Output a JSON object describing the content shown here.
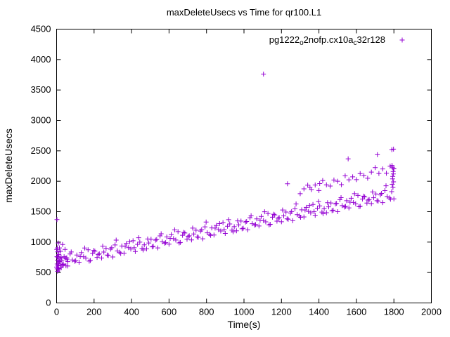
{
  "window": {
    "background": "#ffffff"
  },
  "chart_data": {
    "type": "scatter",
    "title": "maxDeleteUsecs vs Time for qr100.L1",
    "xlabel": "Time(s)",
    "ylabel": "maxDeleteUsecs",
    "xlim": [
      0,
      2000
    ],
    "ylim": [
      0,
      4500
    ],
    "xticks": [
      0,
      200,
      400,
      600,
      800,
      1000,
      1200,
      1400,
      1600,
      1800,
      2000
    ],
    "yticks": [
      0,
      500,
      1000,
      1500,
      2000,
      2500,
      3000,
      3500,
      4000,
      4500
    ],
    "grid": false,
    "legend_position": "top-right-inside",
    "legend_label": "pg1222_o2nofp.cx10a_c32r128",
    "legend_segments": [
      {
        "text": "pg1222",
        "sub": false
      },
      {
        "text": "o",
        "sub": true
      },
      {
        "text": "2nofp.cx10a",
        "sub": false
      },
      {
        "text": "c",
        "sub": true
      },
      {
        "text": "32r128",
        "sub": false
      }
    ],
    "marker": "plus",
    "marker_color": "#9400d3",
    "series": [
      {
        "name": "pg1222_o2nofp.cx10a_c32r128",
        "color": "#9400d3",
        "points": [
          [
            0,
            590
          ],
          [
            12,
            687
          ],
          [
            24,
            750
          ],
          [
            36,
            632
          ],
          [
            48,
            735
          ],
          [
            60,
            607
          ],
          [
            72,
            805
          ],
          [
            84,
            707
          ],
          [
            96,
            685
          ],
          [
            108,
            787
          ],
          [
            120,
            669
          ],
          [
            132,
            827
          ],
          [
            144,
            759
          ],
          [
            156,
            737
          ],
          [
            168,
            874
          ],
          [
            180,
            697
          ],
          [
            192,
            814
          ],
          [
            204,
            851
          ],
          [
            216,
            749
          ],
          [
            228,
            806
          ],
          [
            240,
            739
          ],
          [
            252,
            836
          ],
          [
            264,
            899
          ],
          [
            276,
            781
          ],
          [
            288,
            884
          ],
          [
            300,
            756
          ],
          [
            312,
            953
          ],
          [
            324,
            856
          ],
          [
            336,
            833
          ],
          [
            348,
            936
          ],
          [
            360,
            818
          ],
          [
            372,
            976
          ],
          [
            384,
            908
          ],
          [
            396,
            886
          ],
          [
            408,
            1023
          ],
          [
            420,
            845
          ],
          [
            432,
            963
          ],
          [
            444,
            1000
          ],
          [
            456,
            898
          ],
          [
            468,
            955
          ],
          [
            480,
            888
          ],
          [
            492,
            985
          ],
          [
            504,
            1047
          ],
          [
            516,
            930
          ],
          [
            528,
            1032
          ],
          [
            540,
            905
          ],
          [
            552,
            1102
          ],
          [
            564,
            1005
          ],
          [
            576,
            982
          ],
          [
            588,
            1085
          ],
          [
            600,
            967
          ],
          [
            612,
            1124
          ],
          [
            624,
            1057
          ],
          [
            636,
            1034
          ],
          [
            648,
            1172
          ],
          [
            660,
            994
          ],
          [
            672,
            1112
          ],
          [
            684,
            1149
          ],
          [
            696,
            1047
          ],
          [
            708,
            1104
          ],
          [
            720,
            1036
          ],
          [
            732,
            1134
          ],
          [
            744,
            1196
          ],
          [
            756,
            1079
          ],
          [
            768,
            1181
          ],
          [
            780,
            1054
          ],
          [
            792,
            1251
          ],
          [
            804,
            1153
          ],
          [
            816,
            1131
          ],
          [
            828,
            1233
          ],
          [
            840,
            1116
          ],
          [
            852,
            1273
          ],
          [
            864,
            1206
          ],
          [
            876,
            1183
          ],
          [
            888,
            1321
          ],
          [
            900,
            1143
          ],
          [
            912,
            1260
          ],
          [
            924,
            1298
          ],
          [
            936,
            1195
          ],
          [
            948,
            1253
          ],
          [
            960,
            1185
          ],
          [
            972,
            1283
          ],
          [
            984,
            1345
          ],
          [
            996,
            1228
          ],
          [
            1008,
            1330
          ],
          [
            1020,
            1202
          ],
          [
            1032,
            1400
          ],
          [
            1044,
            1302
          ],
          [
            1056,
            1280
          ],
          [
            1068,
            1382
          ],
          [
            1080,
            1265
          ],
          [
            1092,
            1422
          ],
          [
            1104,
            1354
          ],
          [
            1116,
            1332
          ],
          [
            1128,
            1469
          ],
          [
            1140,
            1292
          ],
          [
            1152,
            1409
          ],
          [
            1164,
            1447
          ],
          [
            1176,
            1344
          ],
          [
            1188,
            1402
          ],
          [
            1200,
            1334
          ],
          [
            1212,
            1431
          ],
          [
            1224,
            1494
          ],
          [
            1236,
            1376
          ],
          [
            1248,
            1479
          ],
          [
            1260,
            1351
          ],
          [
            1272,
            1549
          ],
          [
            1284,
            1451
          ],
          [
            1296,
            1429
          ],
          [
            1308,
            1531
          ],
          [
            1320,
            1413
          ],
          [
            1332,
            1571
          ],
          [
            1344,
            1503
          ],
          [
            1356,
            1481
          ],
          [
            1368,
            1618
          ],
          [
            1380,
            1441
          ],
          [
            1392,
            1558
          ],
          [
            1404,
            1595
          ],
          [
            1416,
            1493
          ],
          [
            1428,
            1550
          ],
          [
            1440,
            1483
          ],
          [
            1452,
            1580
          ],
          [
            1464,
            1643
          ],
          [
            1476,
            1525
          ],
          [
            1488,
            1628
          ],
          [
            1500,
            1500
          ],
          [
            1512,
            1697
          ],
          [
            1524,
            1600
          ],
          [
            1536,
            1577
          ],
          [
            1548,
            1680
          ],
          [
            1560,
            1562
          ],
          [
            1572,
            1720
          ],
          [
            1584,
            1652
          ],
          [
            1596,
            1630
          ],
          [
            1608,
            1767
          ],
          [
            1620,
            1589
          ],
          [
            1632,
            1707
          ],
          [
            1644,
            1744
          ],
          [
            1656,
            1642
          ],
          [
            1668,
            1699
          ],
          [
            1680,
            1632
          ],
          [
            1692,
            1729
          ],
          [
            1704,
            1791
          ],
          [
            1716,
            1674
          ],
          [
            1728,
            1776
          ],
          [
            1740,
            1649
          ],
          [
            1752,
            1846
          ],
          [
            1764,
            1749
          ],
          [
            1776,
            1726
          ],
          [
            1788,
            1829
          ],
          [
            1800,
            1711
          ],
          [
            6,
            754
          ],
          [
            30,
            624
          ],
          [
            54,
            743
          ],
          [
            78,
            838
          ],
          [
            102,
            693
          ],
          [
            126,
            763
          ],
          [
            150,
            903
          ],
          [
            174,
            688
          ],
          [
            198,
            863
          ],
          [
            222,
            798
          ],
          [
            246,
            933
          ],
          [
            270,
            787
          ],
          [
            294,
            907
          ],
          [
            318,
            1032
          ],
          [
            342,
            812
          ],
          [
            366,
            932
          ],
          [
            390,
            1007
          ],
          [
            414,
            907
          ],
          [
            438,
            1072
          ],
          [
            462,
            871
          ],
          [
            486,
            1051
          ],
          [
            510,
            921
          ],
          [
            534,
            1041
          ],
          [
            558,
            1136
          ],
          [
            582,
            991
          ],
          [
            606,
            1061
          ],
          [
            630,
            1201
          ],
          [
            654,
            986
          ],
          [
            678,
            1160
          ],
          [
            702,
            1095
          ],
          [
            726,
            1230
          ],
          [
            750,
            1085
          ],
          [
            774,
            1205
          ],
          [
            798,
            1330
          ],
          [
            822,
            1110
          ],
          [
            846,
            1230
          ],
          [
            870,
            1304
          ],
          [
            894,
            1204
          ],
          [
            918,
            1369
          ],
          [
            942,
            1169
          ],
          [
            966,
            1349
          ],
          [
            990,
            1219
          ],
          [
            1014,
            1339
          ],
          [
            1038,
            1434
          ],
          [
            1062,
            1288
          ],
          [
            1086,
            1358
          ],
          [
            1110,
            1498
          ],
          [
            1134,
            1283
          ],
          [
            1158,
            1458
          ],
          [
            1182,
            1393
          ],
          [
            1206,
            1528
          ],
          [
            1230,
            1383
          ],
          [
            1254,
            1502
          ],
          [
            1278,
            1627
          ],
          [
            1302,
            1407
          ],
          [
            1326,
            1527
          ],
          [
            1350,
            1602
          ],
          [
            1374,
            1502
          ],
          [
            1398,
            1667
          ],
          [
            1422,
            1467
          ],
          [
            1446,
            1647
          ],
          [
            1470,
            1516
          ],
          [
            1494,
            1636
          ],
          [
            1518,
            1731
          ],
          [
            1542,
            1586
          ],
          [
            1566,
            1656
          ],
          [
            1590,
            1796
          ],
          [
            1614,
            1581
          ],
          [
            1638,
            1756
          ],
          [
            1662,
            1690
          ],
          [
            1686,
            1825
          ],
          [
            1710,
            1680
          ],
          [
            1734,
            1800
          ],
          [
            1758,
            1925
          ],
          [
            1782,
            1705
          ],
          [
            1300,
            1796
          ],
          [
            1320,
            1875
          ],
          [
            1340,
            1935
          ],
          [
            1360,
            1864
          ],
          [
            1380,
            1939
          ],
          [
            1400,
            1848
          ],
          [
            1420,
            2012
          ],
          [
            1440,
            1942
          ],
          [
            1460,
            1921
          ],
          [
            1480,
            2021
          ],
          [
            1500,
            2000
          ],
          [
            1520,
            1944
          ],
          [
            1540,
            2089
          ],
          [
            1560,
            2023
          ],
          [
            1580,
            2073
          ],
          [
            1600,
            2027
          ],
          [
            1620,
            2126
          ],
          [
            1640,
            2096
          ],
          [
            1660,
            2050
          ],
          [
            1680,
            2150
          ],
          [
            1700,
            2224
          ],
          [
            1720,
            2128
          ],
          [
            1740,
            2203
          ],
          [
            1760,
            2132
          ],
          [
            1780,
            2247
          ],
          [
            1800,
            2206
          ],
          [
            1790,
            2260
          ],
          [
            1791,
            1950
          ],
          [
            1792,
            2230
          ],
          [
            1793,
            2040
          ],
          [
            1794,
            2080
          ],
          [
            1795,
            1900
          ],
          [
            1796,
            2160
          ],
          [
            1797,
            2120
          ],
          [
            1798,
            1990
          ],
          [
            1799,
            2210
          ],
          [
            1,
            880
          ],
          [
            2,
            1370
          ],
          [
            2,
            760
          ],
          [
            3,
            640
          ],
          [
            3,
            560
          ],
          [
            4,
            905
          ],
          [
            5,
            700
          ],
          [
            5,
            520
          ],
          [
            6,
            840
          ],
          [
            7,
            610
          ],
          [
            8,
            760
          ],
          [
            9,
            985
          ],
          [
            10,
            565
          ],
          [
            11,
            660
          ],
          [
            12,
            795
          ],
          [
            14,
            545
          ],
          [
            15,
            905
          ],
          [
            16,
            680
          ],
          [
            18,
            730
          ],
          [
            20,
            620
          ],
          [
            22,
            850
          ],
          [
            25,
            580
          ],
          [
            28,
            700
          ],
          [
            32,
            960
          ],
          [
            36,
            640
          ],
          [
            40,
            760
          ],
          [
            45,
            880
          ],
          [
            50,
            610
          ],
          [
            55,
            720
          ],
          [
            60,
            680
          ],
          [
            1104,
            3762
          ],
          [
            1556,
            2368
          ],
          [
            1712,
            2437
          ],
          [
            1789,
            2520
          ],
          [
            1798,
            2528
          ],
          [
            1232,
            1958
          ],
          [
            1352,
            1900
          ],
          [
            1404,
            1962
          ]
        ]
      }
    ]
  }
}
